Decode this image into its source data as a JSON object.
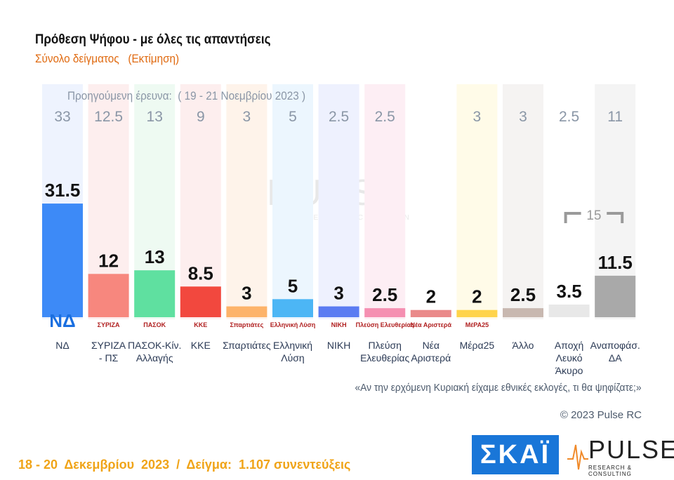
{
  "header": {
    "title": "Πρόθεση Ψήφου - με όλες τις απαντήσεις",
    "subtitle": "Σύνολο δείγματος   (Εκτίμηση)"
  },
  "chart_data": {
    "type": "bar",
    "previous_caption": "Προηγούμενη έρευνα:  ( 19 - 21 Νοεμβρίου 2023 )",
    "categories": [
      "ΝΔ",
      "ΣΥΡΙΖΑ\n- ΠΣ",
      "ΠΑΣΟΚ-Κίν.\nΑλλαγής",
      "ΚΚΕ",
      "Σπαρτιάτες",
      "Ελληνική\nΛύση",
      "ΝΙΚΗ",
      "Πλεύση\nΕλευθερίας",
      "Νέα\nΑριστερά",
      "Μέρα25",
      "Άλλο",
      "Αποχή\nΛευκό\nΆκυρο",
      "Αναποφάσ.\nΔΑ"
    ],
    "series": [
      {
        "values": [
          31.5,
          12,
          13,
          8.5,
          3,
          5,
          3,
          2.5,
          2,
          2,
          2.5,
          3.5,
          11.5
        ]
      },
      {
        "name": "Προηγούμενη έρευνα",
        "values": [
          33,
          12.5,
          13,
          9,
          3,
          5,
          2.5,
          2.5,
          null,
          3,
          3,
          2.5,
          11
        ]
      }
    ],
    "colors": [
      "#3d8af7",
      "#f7877e",
      "#5fe0a0",
      "#f2483e",
      "#fdb36a",
      "#4cb6f5",
      "#5b7cf2",
      "#f58fb1",
      "#ea8a8a",
      "#ffd44a",
      "#c8b8b0",
      "#e8e8e8",
      "#a9a9a9"
    ],
    "stripe_colors": [
      "#eef3fe",
      "#fdeeee",
      "#eefaf2",
      "#fdeeee",
      "#fef3ea",
      "#ecf6fe",
      "#eef1fe",
      "#fdeef4",
      "#ffffff",
      "#fffbe8",
      "#f5f3f2",
      "#ffffff",
      "#f4f4f4"
    ],
    "bracket": {
      "value": "15",
      "spans": [
        "Αποχή Λευκό Άκυρο",
        "Αναποφάσ. ΔΑ"
      ]
    },
    "ylim": [
      0,
      35
    ]
  },
  "logos": [
    "ΝΔ",
    "ΣΥΡΙΖΑ",
    "ΠΑΣΟΚ",
    "ΚΚΕ",
    "Σπαρτιάτες",
    "Ελληνική Λύση",
    "ΝΙΚΗ",
    "Πλεύση Ελευθερίας",
    "Νέα Αριστερά",
    "ΜέΡΑ25"
  ],
  "question": "«Αν την ερχόμενη Κυριακή είχαμε εθνικές εκλογές, τι θα ψηφίζατε;»",
  "copyright": "© 2023 Pulse RC",
  "footer": "18 - 20  Δεκεμβρίου  2023  /  Δείγμα:  1.107 συνεντεύξεις",
  "brand": {
    "skai": "ΣΚΑΪ",
    "pulse": "PULSE",
    "pulse_tag": "RESEARCH & CONSULTING"
  }
}
